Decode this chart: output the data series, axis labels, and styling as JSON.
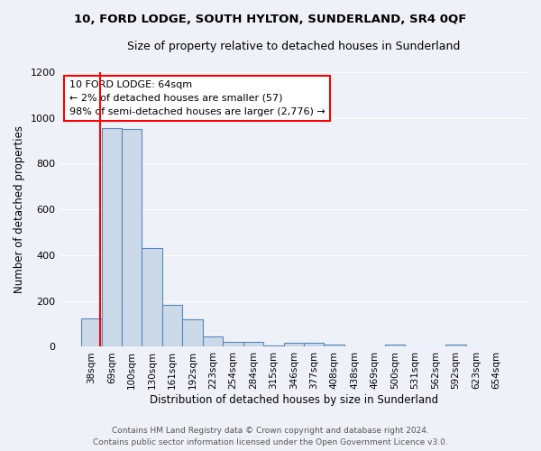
{
  "title": "10, FORD LODGE, SOUTH HYLTON, SUNDERLAND, SR4 0QF",
  "subtitle": "Size of property relative to detached houses in Sunderland",
  "xlabel": "Distribution of detached houses by size in Sunderland",
  "ylabel": "Number of detached properties",
  "footer_line1": "Contains HM Land Registry data © Crown copyright and database right 2024.",
  "footer_line2": "Contains public sector information licensed under the Open Government Licence v3.0.",
  "bar_labels": [
    "38sqm",
    "69sqm",
    "100sqm",
    "130sqm",
    "161sqm",
    "192sqm",
    "223sqm",
    "254sqm",
    "284sqm",
    "315sqm",
    "346sqm",
    "377sqm",
    "408sqm",
    "438sqm",
    "469sqm",
    "500sqm",
    "531sqm",
    "562sqm",
    "592sqm",
    "623sqm",
    "654sqm"
  ],
  "bar_values": [
    125,
    955,
    950,
    430,
    185,
    120,
    45,
    22,
    22,
    5,
    18,
    18,
    10,
    2,
    2,
    10,
    2,
    2,
    10,
    2,
    2
  ],
  "bar_color": "#ccd9e8",
  "bar_edgecolor": "#5588bb",
  "ylim": [
    0,
    1200
  ],
  "yticks": [
    0,
    200,
    400,
    600,
    800,
    1000,
    1200
  ],
  "annotation_title": "10 FORD LODGE: 64sqm",
  "annotation_line1": "← 2% of detached houses are smaller (57)",
  "annotation_line2": "98% of semi-detached houses are larger (2,776) →",
  "red_line_x": 0.45,
  "background_color": "#eef2f8",
  "grid_color": "#ffffff"
}
